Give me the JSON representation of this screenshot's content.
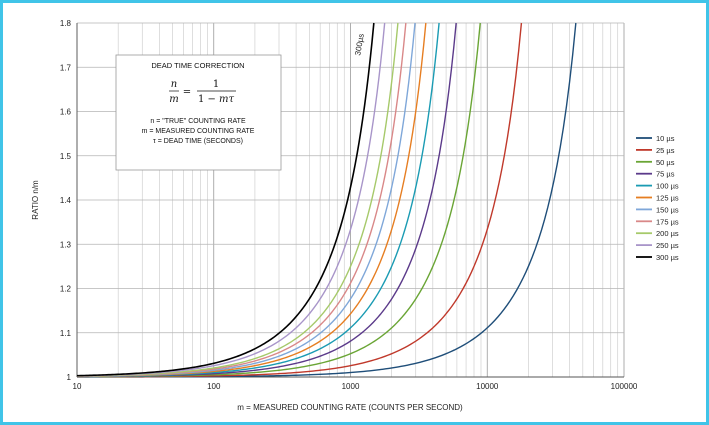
{
  "chart_data": {
    "type": "line",
    "title": "",
    "xlabel": "m = MEASURED COUNTING RATE (COUNTS PER SECOND)",
    "ylabel": "RATIO  n/m",
    "xscale": "log",
    "xlim": [
      10,
      100000
    ],
    "ylim": [
      1,
      1.8
    ],
    "x_ticks": [
      "10",
      "100",
      "1000",
      "10000",
      "100000"
    ],
    "y_ticks": [
      "1",
      "1.1",
      "1.2",
      "1.3",
      "1.4",
      "1.5",
      "1.6",
      "1.7",
      "1.8"
    ],
    "grid": true,
    "legend_position": "right",
    "formula": "n/m = 1/(1 - mτ)",
    "series": [
      {
        "name": "10 µs",
        "tau": 1e-05,
        "color": "#1f4e79"
      },
      {
        "name": "25 µs",
        "tau": 2.5e-05,
        "color": "#c0392b"
      },
      {
        "name": "50 µs",
        "tau": 5e-05,
        "color": "#6aa535"
      },
      {
        "name": "75 µs",
        "tau": 7.5e-05,
        "color": "#5b3a8a"
      },
      {
        "name": "100 µs",
        "tau": 0.0001,
        "color": "#1a9bb3"
      },
      {
        "name": "125 µs",
        "tau": 0.000125,
        "color": "#e67e22"
      },
      {
        "name": "150 µs",
        "tau": 0.00015,
        "color": "#7fa7d9"
      },
      {
        "name": "175 µs",
        "tau": 0.000175,
        "color": "#d98888"
      },
      {
        "name": "200 µs",
        "tau": 0.0002,
        "color": "#a6c96a"
      },
      {
        "name": "250 µs",
        "tau": 0.00025,
        "color": "#a895c9"
      },
      {
        "name": "300 µs",
        "tau": 0.0003,
        "color": "#000000"
      }
    ],
    "annotations": {
      "curve_label": "300µs",
      "box_title": "DEAD TIME CORRECTION",
      "lines": [
        "n  = \"TRUE\" COUNTING RATE",
        "m = MEASURED COUNTING RATE",
        "τ = DEAD TIME (SECONDS)"
      ]
    }
  }
}
